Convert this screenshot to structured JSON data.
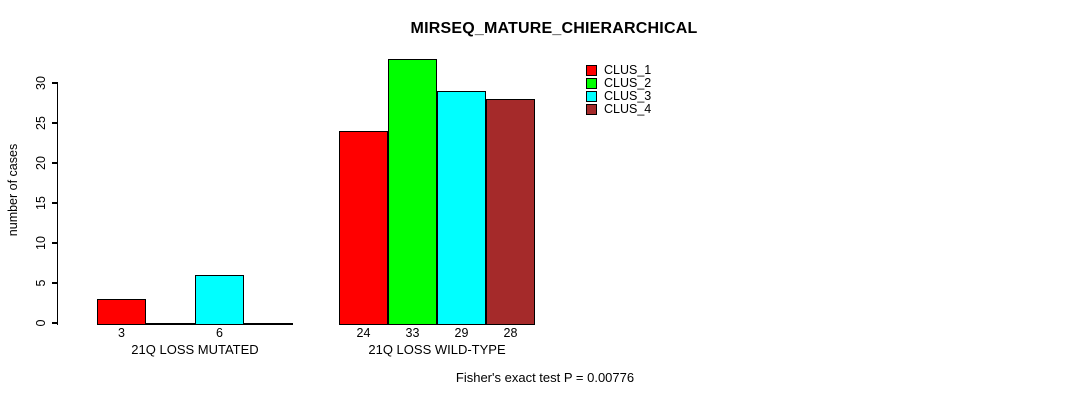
{
  "chart_data": {
    "type": "bar",
    "title": "MIRSEQ_MATURE_CHIERARCHICAL",
    "ylabel": "number of cases",
    "xlabel": "",
    "categories": [
      "21Q LOSS MUTATED",
      "21Q LOSS WILD-TYPE"
    ],
    "series": [
      {
        "name": "CLUS_1",
        "color": "#FF0000",
        "values": [
          3,
          24
        ]
      },
      {
        "name": "CLUS_2",
        "color": "#00FF00",
        "values": [
          0,
          33
        ]
      },
      {
        "name": "CLUS_3",
        "color": "#00FFFF",
        "values": [
          6,
          29
        ]
      },
      {
        "name": "CLUS_4",
        "color": "#A52A2A",
        "values": [
          0,
          28
        ]
      }
    ],
    "yticks": [
      0,
      5,
      10,
      15,
      20,
      25,
      30
    ],
    "ylim": [
      0,
      33
    ],
    "grid": false,
    "legend_position": "top-right-inside",
    "zero_bars_hidden": true,
    "value_labels_under_bars": true,
    "annotation": "Fisher's exact test P = 0.00776",
    "axis_color": "#000000",
    "background_color": "#FFFFFF"
  }
}
